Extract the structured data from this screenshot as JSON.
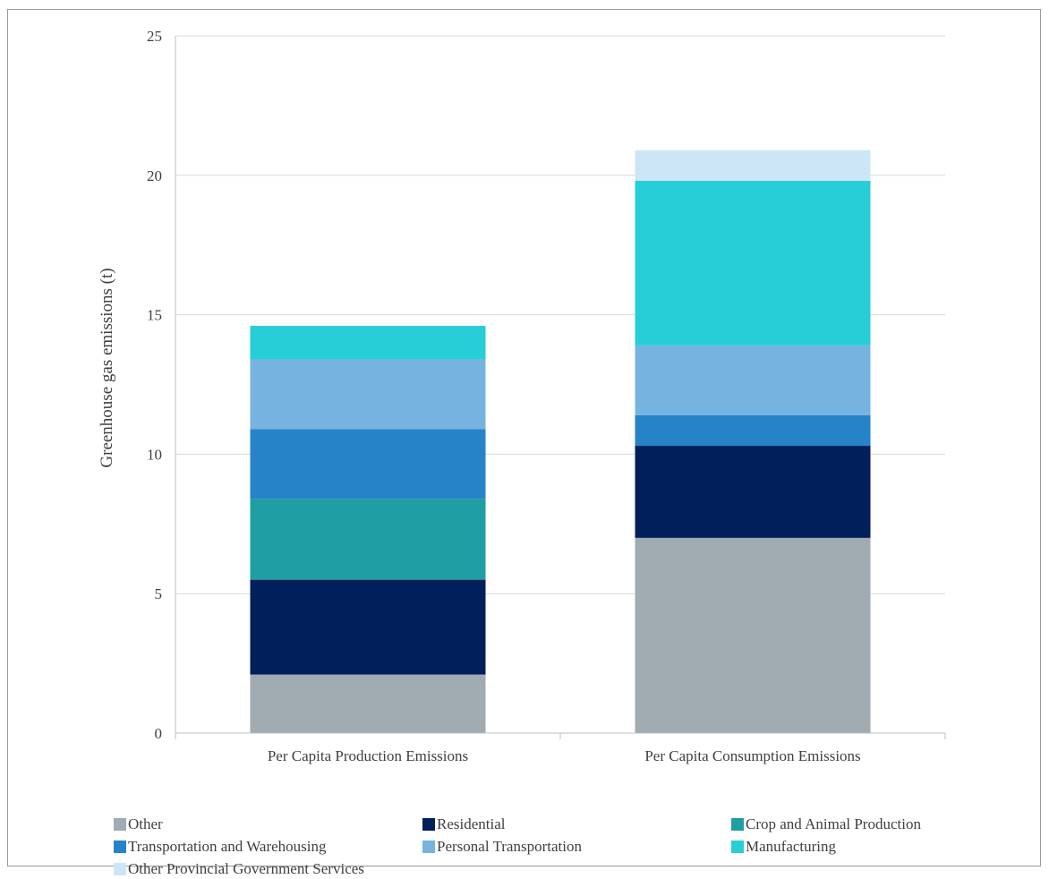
{
  "chart_data": {
    "type": "bar",
    "stacked": true,
    "title": "",
    "xlabel": "",
    "ylabel": "Greenhouse gas emissions (t)",
    "ylim": [
      0,
      25
    ],
    "yticks": [
      "0",
      "5",
      "10",
      "15",
      "20",
      "25"
    ],
    "grid": true,
    "legend_position": "bottom",
    "categories": [
      "Per Capita Production Emissions",
      "Per Capita Consumption Emissions"
    ],
    "series": [
      {
        "name": "Other",
        "color": "#a0abb2",
        "values": [
          2.1,
          7.0
        ]
      },
      {
        "name": "Residential",
        "color": "#001f5b",
        "values": [
          3.4,
          3.3
        ]
      },
      {
        "name": "Crop and Animal Production",
        "color": "#1f9ea3",
        "values": [
          2.9,
          0
        ]
      },
      {
        "name": "Transportation and Warehousing",
        "color": "#2783c8",
        "values": [
          2.5,
          1.1
        ]
      },
      {
        "name": "Personal Transportation",
        "color": "#77b3e1",
        "values": [
          2.5,
          2.5
        ]
      },
      {
        "name": "Manufacturing",
        "color": "#27cdd7",
        "values": [
          1.2,
          5.9
        ]
      },
      {
        "name": "Other Provincial Government Services",
        "color": "#cce6f7",
        "values": [
          0,
          1.1
        ]
      }
    ]
  }
}
